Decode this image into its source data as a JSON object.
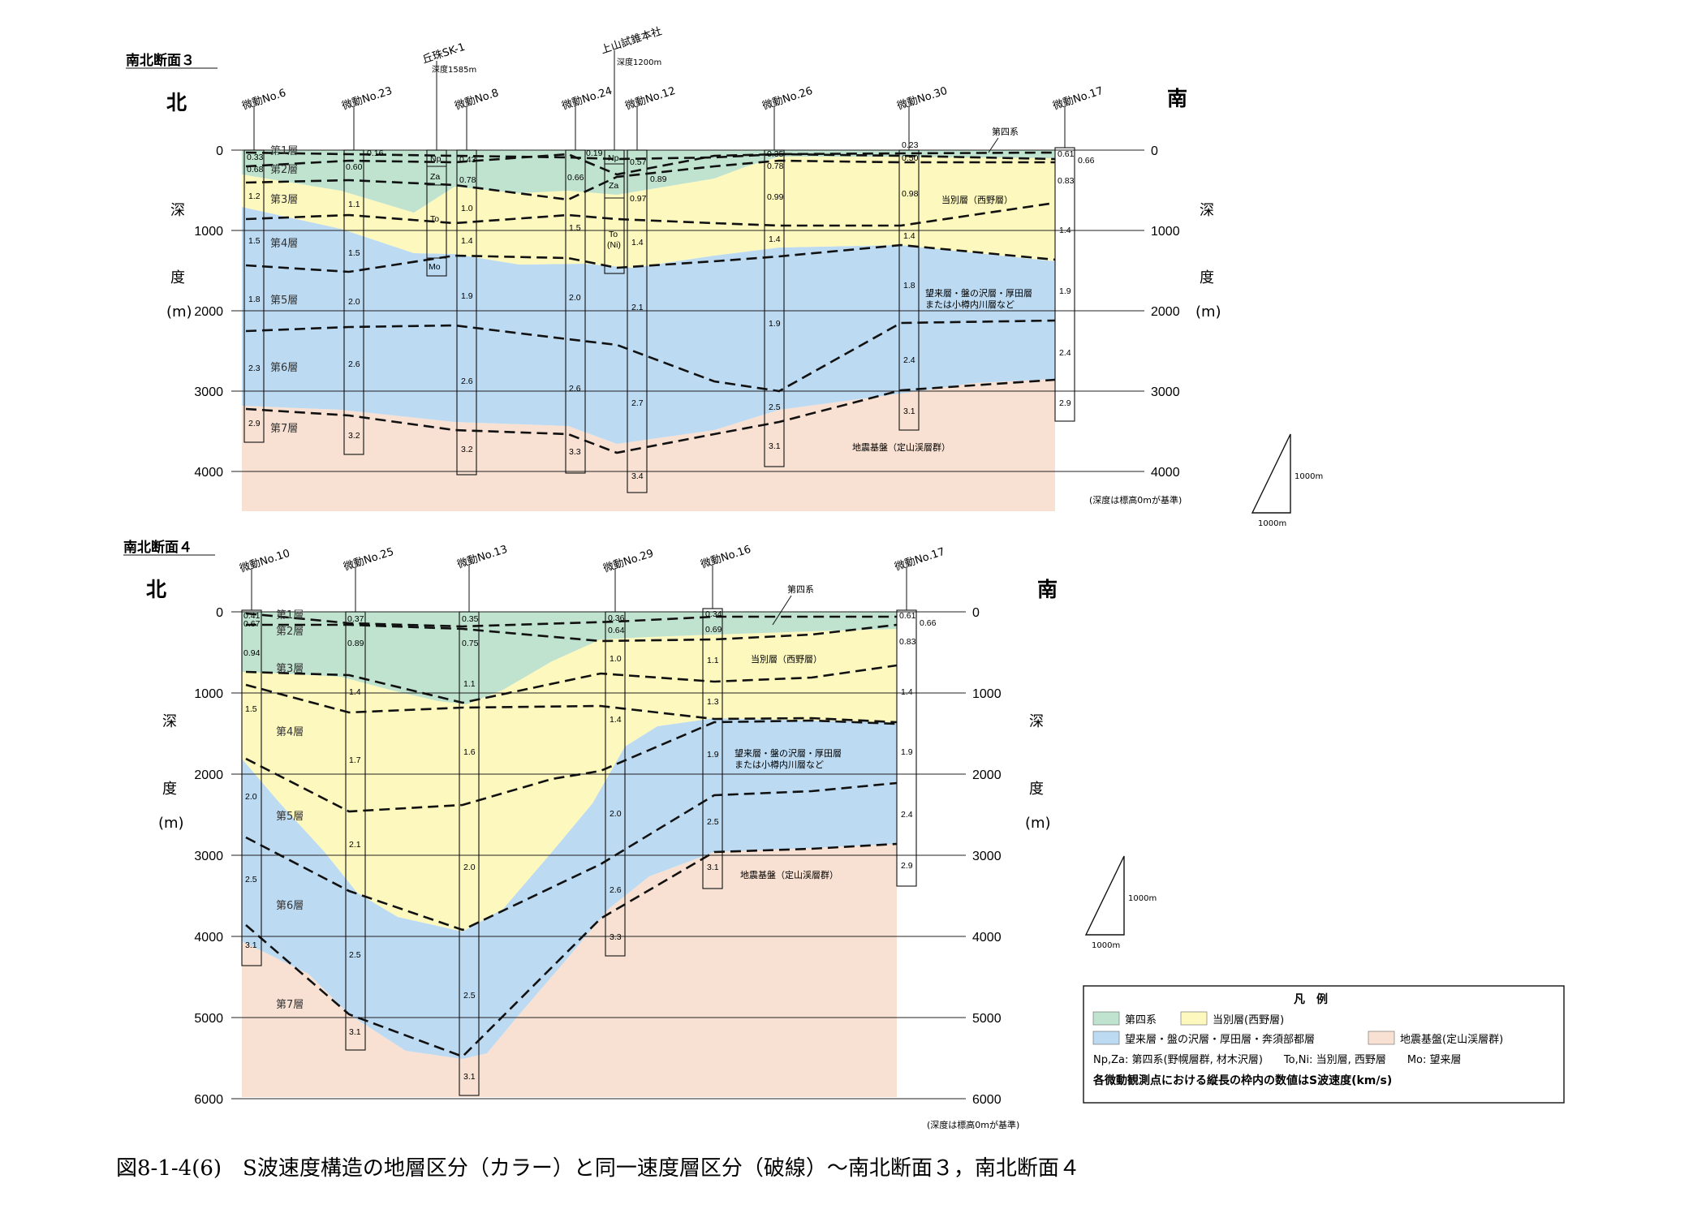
{
  "s3": {
    "title": "南北断面３",
    "north": "北",
    "south": "南",
    "depth_chars": [
      "深",
      "度",
      "(m)"
    ],
    "depth_labels": [
      "0",
      "1000",
      "2000",
      "3000",
      "4000"
    ],
    "stations": [
      {
        "name": "微動No.6",
        "vel": [
          "0.33",
          "0.68",
          "1.2",
          "1.5",
          "1.8",
          "2.3",
          "2.9"
        ]
      },
      {
        "name": "微動No.23",
        "vel": [
          "0.16",
          "0.60",
          "1.1",
          "1.5",
          "2.0",
          "2.6",
          "3.2"
        ]
      },
      {
        "name": "微動No.8",
        "vel": [
          "0.43",
          "0.78",
          "1.0",
          "1.4",
          "1.9",
          "2.6",
          "3.2"
        ]
      },
      {
        "name": "微動No.24",
        "vel": [
          "0.19",
          "0.66",
          "1.5",
          "2.0",
          "2.6",
          "3.3"
        ]
      },
      {
        "name": "微動No.12",
        "vel": [
          "0.57",
          "0.89",
          "0.97",
          "1.4",
          "2.1",
          "2.7",
          "3.4"
        ]
      },
      {
        "name": "微動No.26",
        "vel": [
          "0.35",
          "0.78",
          "0.99",
          "1.4",
          "1.9",
          "2.5",
          "3.1"
        ]
      },
      {
        "name": "微動No.30",
        "vel": [
          "0.23",
          "0.50",
          "0.98",
          "1.4",
          "1.8",
          "2.4",
          "3.1"
        ]
      },
      {
        "name": "微動No.17",
        "vel": [
          "0.61",
          "0.66",
          "0.83",
          "1.4",
          "1.9",
          "2.4",
          "2.9"
        ]
      }
    ],
    "wells": [
      {
        "name": "丘珠SK-1",
        "depth": "深度1585m",
        "units": [
          "Np",
          "Za",
          "To",
          "Mo"
        ]
      },
      {
        "name": "上山試錐本社",
        "depth": "深度1200m",
        "units": [
          "Np",
          "Za",
          "To",
          "(Ni)"
        ]
      }
    ],
    "layers": [
      "第1層",
      "第2層",
      "第3層",
      "第4層",
      "第5層",
      "第6層",
      "第7層"
    ],
    "labels": {
      "quaternary": "第四系",
      "tobetsu": "当別層（西野層）",
      "mirai_1": "望来層・盤の沢層・厚田層",
      "mirai_2": "または小樽内川層など",
      "basement": "地震基盤（定山渓層群）"
    },
    "note": "(深度は標高0mが基準)",
    "scale": "1000m"
  },
  "s4": {
    "title": "南北断面４",
    "north": "北",
    "south": "南",
    "depth_chars": [
      "深",
      "度",
      "(m)"
    ],
    "depth_labels": [
      "0",
      "1000",
      "2000",
      "3000",
      "4000",
      "5000",
      "6000"
    ],
    "stations": [
      {
        "name": "微動No.10",
        "vel": [
          "0.41",
          "0.67",
          "0.94",
          "1.5",
          "2.0",
          "2.5",
          "3.1"
        ]
      },
      {
        "name": "微動No.25",
        "vel": [
          "0.37",
          "0.89",
          "1.4",
          "1.7",
          "2.1",
          "2.5",
          "3.1"
        ]
      },
      {
        "name": "微動No.13",
        "vel": [
          "0.35",
          "0.75",
          "1.1",
          "1.6",
          "2.0",
          "2.5",
          "3.1"
        ]
      },
      {
        "name": "微動No.29",
        "vel": [
          "0.36",
          "0.64",
          "1.0",
          "1.4",
          "2.0",
          "2.6",
          "3.3"
        ]
      },
      {
        "name": "微動No.16",
        "vel": [
          "0.34",
          "0.69",
          "1.1",
          "1.3",
          "1.9",
          "2.5",
          "3.1"
        ]
      },
      {
        "name": "微動No.17",
        "vel": [
          "0.61",
          "0.66",
          "0.83",
          "1.4",
          "1.9",
          "2.4",
          "2.9"
        ]
      }
    ],
    "layers": [
      "第1層",
      "第2層",
      "第3層",
      "第4層",
      "第5層",
      "第6層",
      "第7層"
    ],
    "labels": {
      "quaternary": "第四系",
      "tobetsu": "当別層（西野層）",
      "mirai_1": "望来層・盤の沢層・厚田層",
      "mirai_2": "または小樽内川層など",
      "basement": "地震基盤（定山渓層群）"
    },
    "note": "(深度は標高0mが基準)",
    "scale": "1000m"
  },
  "legend": {
    "title": "凡　例",
    "items": [
      "第四系",
      "当別層(西野層)",
      "望来層・盤の沢層・厚田層・奔須部都層",
      "地震基盤(定山渓層群)"
    ],
    "abbrev": "Np,Za: 第四系(野幌層群, 材木沢層)　　To,Ni: 当別層, 西野層　　Mo: 望来層",
    "summary": "各微動観測点における縦長の枠内の数値はS波速度(km/s)"
  },
  "colors": {
    "quaternary": "#bfe3cf",
    "tobetsu": "#fdf8bd",
    "mirai": "#bcdaf2",
    "basement": "#f8e1d2"
  },
  "caption": "図8-1-4(6)　S波速度構造の地層区分（カラー）と同一速度層区分（破線）～南北断面３，南北断面４"
}
